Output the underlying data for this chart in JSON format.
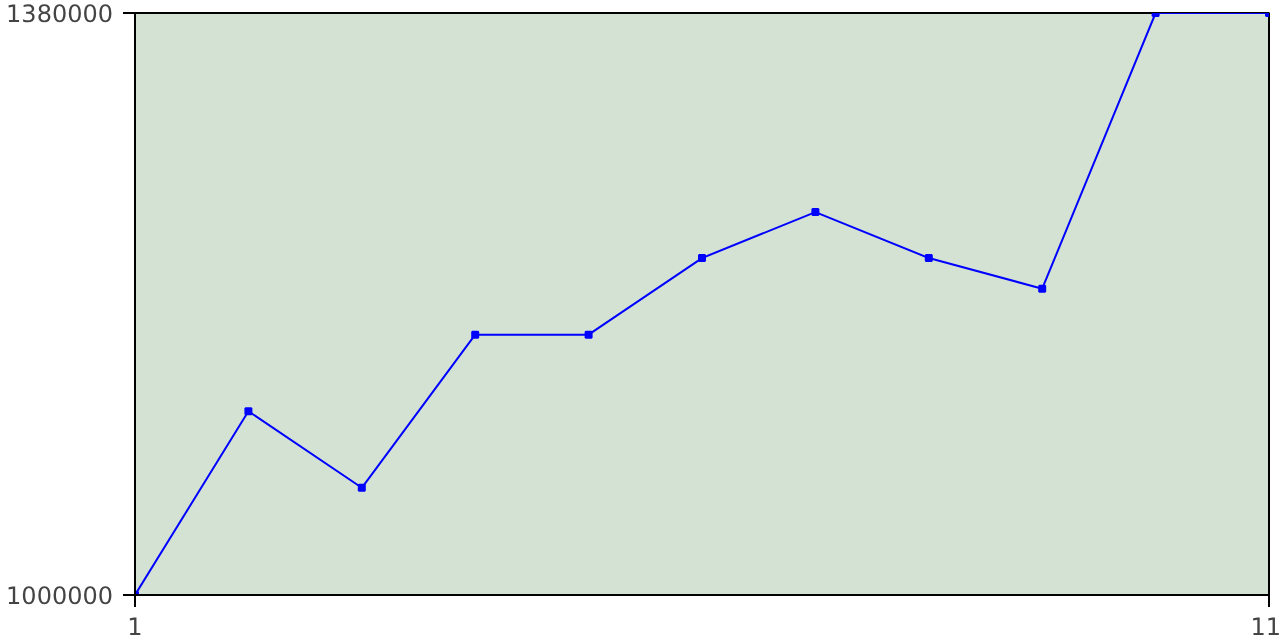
{
  "chart_data": {
    "type": "line",
    "x": [
      1,
      2,
      3,
      4,
      5,
      6,
      7,
      8,
      9,
      10,
      11
    ],
    "series": [
      {
        "color": "#0000ff",
        "values": [
          1000000,
          1120000,
          1070000,
          1170000,
          1170000,
          1220000,
          1250000,
          1220000,
          1200000,
          1380000,
          1380000
        ]
      }
    ],
    "xlim": [
      1,
      11
    ],
    "ylim": [
      1000000,
      1380000
    ],
    "xticks": [
      1,
      11
    ],
    "yticks": [
      1000000,
      1380000
    ],
    "marker": "square",
    "line_style": "solid"
  }
}
